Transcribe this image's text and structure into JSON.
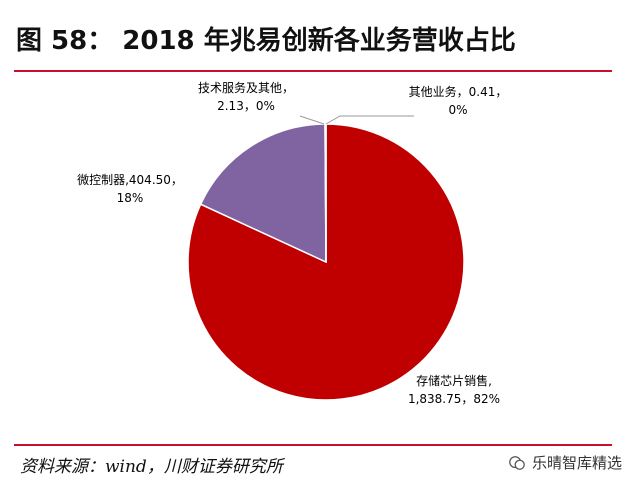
{
  "header": {
    "title": "图 58： 2018 年兆易创新各业务营收占比"
  },
  "footer": {
    "source": "资料来源：wind，川财证券研究所",
    "watermark": "乐晴智库精选"
  },
  "colors": {
    "accent": "#c8102e",
    "storage": "#c00000",
    "mcu": "#8064a2",
    "tech": "#4f81bd",
    "other": "#9bbb59"
  },
  "chart_data": {
    "type": "pie",
    "title": "",
    "slices": [
      {
        "label": "存储芯片销售",
        "value": 1838.75,
        "percent": "82%",
        "value_text": "1,838.75",
        "color": "#c00000"
      },
      {
        "label": "微控制器",
        "value": 404.5,
        "percent": "18%",
        "value_text": "404.50",
        "color": "#8064a2"
      },
      {
        "label": "技术服务及其他",
        "value": 2.13,
        "percent": "0%",
        "value_text": "2.13",
        "color": "#4f81bd"
      },
      {
        "label": "其他业务",
        "value": 0.41,
        "percent": "0%",
        "value_text": "0.41",
        "color": "#9bbb59"
      }
    ],
    "labels": {
      "storage_line1": "存储芯片销售,",
      "storage_line2": "1,838.75，82%",
      "mcu_line1": "微控制器,404.50，",
      "mcu_line2": "18%",
      "tech_line1": "技术服务及其他，",
      "tech_line2": "2.13，0%",
      "other_line1": "其他业务，0.41，",
      "other_line2": "0%"
    }
  }
}
